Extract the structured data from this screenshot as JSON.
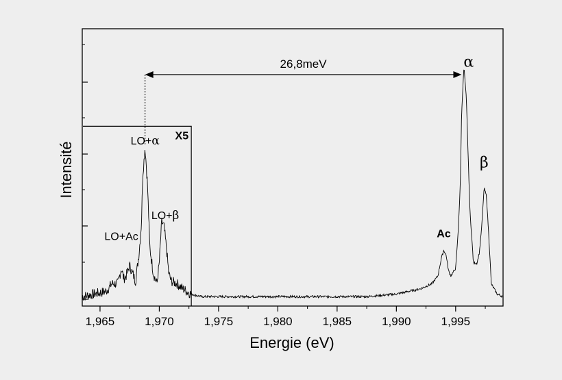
{
  "chart_data": {
    "type": "line",
    "xlabel": "Energie (eV)",
    "ylabel": "Intensité",
    "xlim": [
      1.9635,
      1.999
    ],
    "ylim": [
      0,
      100
    ],
    "x_ticks": [
      "1,965",
      "1,970",
      "1,975",
      "1,980",
      "1,985",
      "1,990",
      "1,995"
    ],
    "x_tick_values": [
      1.965,
      1.97,
      1.975,
      1.98,
      1.985,
      1.99,
      1.995
    ],
    "grid": false,
    "legend": "none",
    "inset": {
      "label": "X5",
      "x_range": [
        1.9635,
        1.9727
      ],
      "y_top": 67
    },
    "measurement": {
      "label": "26,8meV",
      "from_x": 1.9688,
      "to_x": 1.9955,
      "y": 87
    },
    "annotations": [
      {
        "text": "α",
        "x": 1.9961,
        "y": 90,
        "style": "greek"
      },
      {
        "text": "β",
        "x": 1.9974,
        "y": 51,
        "style": "greek"
      },
      {
        "text": "Ac",
        "x": 1.994,
        "y": 24,
        "style": "bold"
      },
      {
        "text": "LO+α",
        "x": 1.9688,
        "y": 60,
        "style": "mixed"
      },
      {
        "text": "LO+β",
        "x": 1.9705,
        "y": 31,
        "style": "mixed"
      },
      {
        "text": "LO+Ac",
        "x": 1.9668,
        "y": 23,
        "style": "plain"
      }
    ],
    "series": [
      {
        "values": {
          "x": [
            1.9635,
            1.9645,
            1.9655,
            1.966,
            1.9665,
            1.9668,
            1.967,
            1.9672,
            1.9675,
            1.968,
            1.9683,
            1.9685,
            1.9686,
            1.9688,
            1.969,
            1.9692,
            1.9695,
            1.9698,
            1.97,
            1.9702,
            1.9704,
            1.9706,
            1.9708,
            1.971,
            1.9715,
            1.972,
            1.9727,
            1.9735,
            1.975,
            1.9775,
            1.98,
            1.9825,
            1.985,
            1.9875,
            1.99,
            1.991,
            1.992,
            1.993,
            1.9935,
            1.9938,
            1.994,
            1.9942,
            1.9944,
            1.9946,
            1.995,
            1.9952,
            1.9954,
            1.9955,
            1.9957,
            1.9959,
            1.9962,
            1.9965,
            1.9968,
            1.997,
            1.9972,
            1.9974,
            1.9976,
            1.9979,
            1.998,
            1.9985,
            1.999
          ],
          "y": [
            1,
            2,
            3,
            6,
            6,
            12,
            8,
            9,
            13,
            7,
            18,
            30,
            48,
            59,
            45,
            20,
            10,
            6,
            14,
            30,
            28,
            20,
            10,
            7,
            6,
            4,
            2,
            1,
            1,
            1,
            1,
            1,
            1,
            1,
            2,
            3,
            4,
            6,
            9,
            16,
            19,
            17,
            11,
            9,
            12,
            25,
            45,
            72,
            90,
            78,
            35,
            14,
            14,
            18,
            28,
            43,
            40,
            16,
            6,
            2,
            1
          ]
        }
      }
    ]
  }
}
